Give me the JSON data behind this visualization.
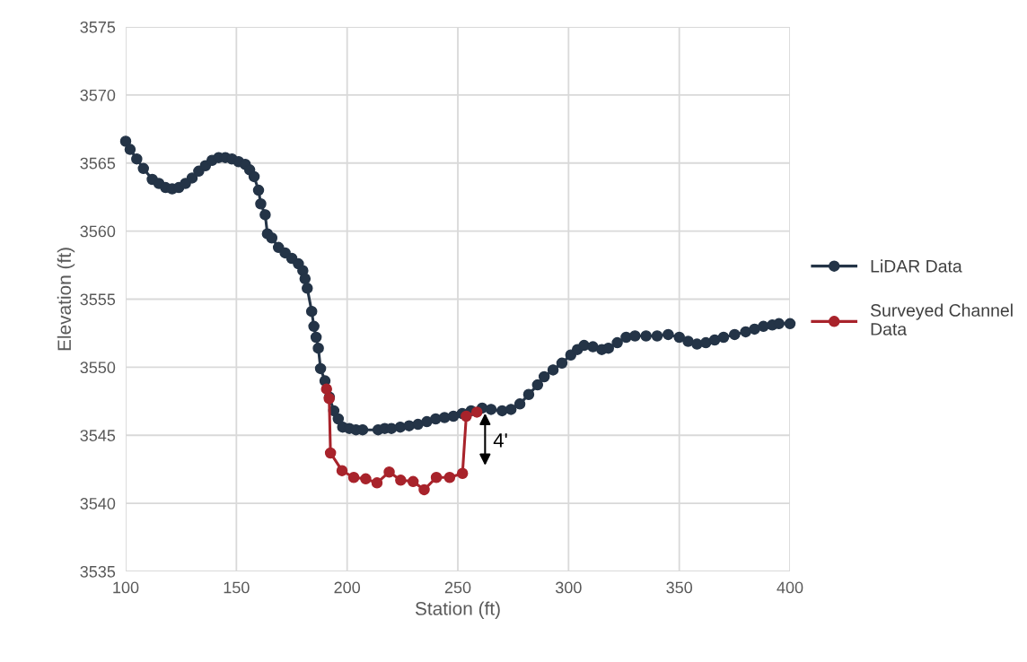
{
  "chart_data": {
    "type": "line",
    "xlabel": "Station (ft)",
    "ylabel": "Elevation (ft)",
    "xlim": [
      100,
      400
    ],
    "xticks": [
      100,
      150,
      200,
      250,
      300,
      350,
      400
    ],
    "ylim": [
      3535,
      3575
    ],
    "yticks": [
      3535,
      3540,
      3545,
      3550,
      3555,
      3560,
      3565,
      3570,
      3575
    ],
    "grid": true,
    "legend": "right",
    "marker": "circle",
    "line_style": "solid",
    "annotations": [
      "4'"
    ],
    "series": [
      {
        "name": "LiDAR Data",
        "color": "#243447",
        "x": [
          100,
          102,
          105,
          108,
          112,
          115,
          118,
          121,
          124,
          127,
          130,
          133,
          136,
          139,
          142,
          145,
          148,
          151,
          154,
          156,
          158,
          160,
          161,
          163,
          164,
          166,
          169,
          172,
          175,
          178,
          180,
          181,
          182,
          184,
          185,
          186,
          187,
          188,
          190,
          192,
          194,
          196,
          198,
          201,
          204,
          207,
          214,
          217,
          220,
          224,
          228,
          232,
          236,
          240,
          244,
          248,
          252,
          256,
          261,
          265,
          270,
          274,
          278,
          282,
          286,
          289,
          293,
          297,
          301,
          304,
          307,
          311,
          315,
          318,
          322,
          326,
          330,
          335,
          340,
          345,
          350,
          354,
          358,
          362,
          366,
          370,
          375,
          380,
          384,
          388,
          392,
          395,
          400
        ],
        "values": [
          3566.6,
          3566.0,
          3565.3,
          3564.6,
          3563.8,
          3563.5,
          3563.2,
          3563.1,
          3563.2,
          3563.5,
          3563.9,
          3564.4,
          3564.8,
          3565.2,
          3565.4,
          3565.4,
          3565.3,
          3565.1,
          3564.9,
          3564.5,
          3564.0,
          3563.0,
          3562.0,
          3561.2,
          3559.8,
          3559.5,
          3558.8,
          3558.4,
          3558.0,
          3557.6,
          3557.1,
          3556.5,
          3555.8,
          3554.1,
          3553.0,
          3552.2,
          3551.4,
          3549.9,
          3549.0,
          3547.8,
          3546.8,
          3546.2,
          3545.6,
          3545.5,
          3545.4,
          3545.4,
          3545.4,
          3545.5,
          3545.5,
          3545.6,
          3545.7,
          3545.8,
          3546.0,
          3546.2,
          3546.3,
          3546.4,
          3546.6,
          3546.8,
          3547.0,
          3546.9,
          3546.8,
          3546.9,
          3547.3,
          3548.0,
          3548.7,
          3549.3,
          3549.8,
          3550.3,
          3550.9,
          3551.3,
          3551.6,
          3551.5,
          3551.3,
          3551.4,
          3551.8,
          3552.2,
          3552.3,
          3552.3,
          3552.3,
          3552.4,
          3552.2,
          3551.9,
          3551.7,
          3551.8,
          3552.0,
          3552.2,
          3552.4,
          3552.6,
          3552.8,
          3553.0,
          3553.1,
          3553.2,
          3553.2
        ]
      },
      {
        "name": "Surveyed Channel Data",
        "color": "#a8232b",
        "x": [
          190.7,
          191.9,
          192.5,
          197.7,
          203,
          208.4,
          213.5,
          219,
          224.2,
          229.8,
          234.8,
          240.3,
          246.3,
          252.1,
          253.8,
          258.6
        ],
        "values": [
          3548.4,
          3547.7,
          3543.7,
          3542.4,
          3541.9,
          3541.8,
          3541.5,
          3542.3,
          3541.7,
          3541.6,
          3541.0,
          3541.9,
          3541.9,
          3542.2,
          3546.4,
          3546.7
        ]
      }
    ]
  }
}
